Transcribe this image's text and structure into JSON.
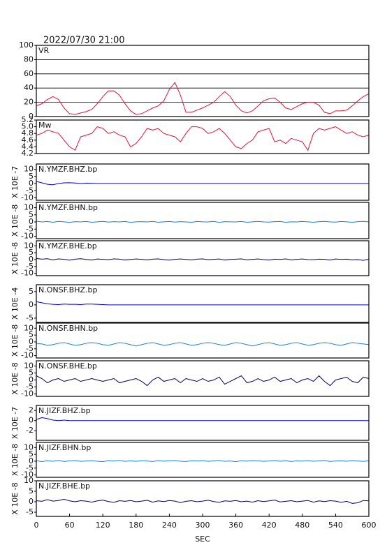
{
  "chart_data": {
    "type": "line",
    "title": "2022/07/30 21:00",
    "xlabel": "SEC",
    "x": [
      0,
      10,
      20,
      30,
      40,
      50,
      60,
      70,
      80,
      90,
      100,
      110,
      120,
      130,
      140,
      150,
      160,
      170,
      180,
      190,
      200,
      210,
      220,
      230,
      240,
      250,
      260,
      270,
      280,
      290,
      300,
      310,
      320,
      330,
      340,
      350,
      360,
      370,
      380,
      390,
      400,
      410,
      420,
      430,
      440,
      450,
      460,
      470,
      480,
      490,
      500,
      510,
      520,
      530,
      540,
      550,
      560,
      570,
      580,
      590,
      600
    ],
    "xlim": [
      0,
      600
    ],
    "xticks": [
      0,
      60,
      120,
      180,
      240,
      300,
      360,
      420,
      480,
      540,
      600
    ],
    "panels": [
      {
        "name": "VR",
        "color": "#dc143c",
        "grid": true,
        "ylim": [
          0,
          100
        ],
        "yticks": [
          0,
          20,
          40,
          60,
          80,
          100
        ],
        "values": [
          15,
          18,
          24,
          28,
          24,
          12,
          4,
          3,
          5,
          7,
          10,
          18,
          28,
          36,
          36,
          30,
          18,
          8,
          3,
          4,
          8,
          12,
          15,
          22,
          38,
          48,
          30,
          6,
          6,
          9,
          12,
          16,
          20,
          28,
          35,
          28,
          16,
          8,
          5,
          8,
          15,
          22,
          25,
          26,
          20,
          12,
          10,
          14,
          18,
          20,
          20,
          16,
          6,
          4,
          8,
          8,
          9,
          15,
          22,
          28,
          32
        ]
      },
      {
        "name": "Mw",
        "color": "#dc143c",
        "grid": false,
        "ylim": [
          4.2,
          5.2
        ],
        "yticks": [
          4.2,
          4.4,
          4.6,
          4.8,
          {
            "value": 5,
            "label": "5.0"
          },
          5.2
        ],
        "values": [
          4.75,
          4.8,
          4.9,
          4.85,
          4.8,
          4.6,
          4.4,
          4.3,
          4.7,
          4.75,
          4.8,
          5.0,
          4.95,
          4.8,
          4.85,
          4.75,
          4.7,
          4.4,
          4.5,
          4.7,
          4.95,
          4.9,
          4.95,
          4.8,
          4.75,
          4.7,
          4.55,
          4.8,
          5.0,
          5.0,
          4.95,
          4.8,
          4.85,
          4.95,
          4.8,
          4.6,
          4.4,
          4.35,
          4.5,
          4.6,
          4.85,
          4.9,
          4.95,
          4.55,
          4.6,
          4.5,
          4.65,
          4.6,
          4.55,
          4.3,
          4.8,
          4.95,
          4.9,
          4.95,
          5.0,
          4.9,
          4.8,
          4.85,
          4.75,
          4.7,
          4.75
        ]
      },
      {
        "name": "N.YMZF.BHZ.bp",
        "ylabel": "X 10E -7",
        "color": "#0000cd",
        "grid": false,
        "ylim": [
          -11.7,
          13.7
        ],
        "yticks": [
          -10,
          -5,
          0,
          5,
          10
        ],
        "values": [
          1.5,
          0.5,
          -0.5,
          -0.8,
          0,
          0.5,
          0.6,
          0.4,
          0,
          0.3,
          0.2,
          0,
          0,
          0,
          0,
          0,
          0,
          0,
          0,
          0,
          0,
          0,
          0,
          0,
          0,
          0,
          0,
          0,
          0,
          0,
          0,
          0,
          0,
          0,
          0,
          0,
          0,
          0,
          0,
          0,
          0,
          0,
          0,
          0,
          0,
          0,
          0,
          0,
          0,
          0,
          0,
          0,
          0,
          0,
          0,
          0,
          0,
          0,
          0,
          0,
          0
        ]
      },
      {
        "name": "N.YMZF.BHN.bp",
        "ylabel": "X 10E -8",
        "color": "#1e7fd0",
        "grid": false,
        "ylim": [
          -11.7,
          13.7
        ],
        "yticks": [
          -10,
          -5,
          0,
          5,
          10
        ],
        "values": [
          0.5,
          0,
          0.3,
          -0.2,
          0.4,
          0.1,
          -0.3,
          0.2,
          0,
          0.3,
          -0.2,
          0.1,
          0.4,
          -0.1,
          0.2,
          0,
          0.3,
          -0.3,
          0.1,
          0.2,
          0,
          0.4,
          -0.2,
          0.1,
          0.3,
          -0.1,
          0.2,
          0,
          -0.2,
          0.3,
          0.1,
          0,
          0.4,
          -0.3,
          0.2,
          0.1,
          0,
          0.3,
          -0.2,
          0.1,
          0.4,
          0,
          -0.1,
          0.2,
          0.3,
          -0.2,
          0.1,
          0,
          0.3,
          0.1,
          -0.2,
          0.2,
          0.4,
          0,
          -0.1,
          0.3,
          0.1,
          -0.2,
          0.2,
          0.4,
          0.1
        ]
      },
      {
        "name": "N.YMZF.BHE.bp",
        "ylabel": "X 10E -8",
        "color": "#000060",
        "grid": false,
        "ylim": [
          -11.7,
          13.7
        ],
        "yticks": [
          -10,
          -5,
          0,
          5,
          10
        ],
        "values": [
          0.8,
          0.3,
          0.6,
          -0.2,
          0.5,
          0.2,
          -0.4,
          0.3,
          0.6,
          0.1,
          -0.3,
          0.4,
          0.2,
          -0.1,
          0.5,
          0.3,
          -0.3,
          0.1,
          0.4,
          0.2,
          -0.2,
          0.3,
          0.5,
          0,
          -0.4,
          0.2,
          0.4,
          0.1,
          -0.2,
          0.3,
          0.5,
          -0.1,
          0.2,
          0.4,
          -0.3,
          0.1,
          0.3,
          0.5,
          -0.2,
          0.2,
          0.4,
          0,
          -0.3,
          0.3,
          0.1,
          0.5,
          -0.2,
          0.2,
          0.4,
          0,
          -0.1,
          0.3,
          0.2,
          -0.3,
          0.4,
          0.1,
          0.3,
          -0.2,
          0,
          -0.6,
          0.4
        ]
      },
      {
        "name": "N.ONSF.BHZ.bp",
        "ylabel": "X 10E -4",
        "color": "#0000cd",
        "grid": false,
        "ylim": [
          -6.6,
          7.6
        ],
        "yticks": [
          -5,
          0,
          5
        ],
        "values": [
          1.2,
          0.8,
          0.4,
          0.2,
          0.1,
          0.3,
          0.2,
          0.2,
          0.1,
          0.3,
          0.3,
          0.2,
          0.1,
          0,
          0,
          0,
          0,
          0,
          0,
          0,
          0,
          0,
          0,
          0,
          0,
          0,
          0,
          0,
          0,
          0,
          0,
          0,
          0,
          0,
          0,
          0,
          0,
          0,
          0,
          0,
          0,
          0,
          0,
          0,
          0,
          0,
          0,
          0,
          0,
          0,
          0,
          0,
          0,
          0,
          0,
          0,
          0,
          0,
          0,
          0,
          0
        ]
      },
      {
        "name": "N.ONSF.BHN.bp",
        "ylabel": "X 10E -8",
        "color": "#1e7fd0",
        "grid": false,
        "ylim": [
          -11.7,
          13.7
        ],
        "yticks": [
          -10,
          -5,
          0,
          5,
          10
        ],
        "values": [
          -1,
          -1.5,
          -2.5,
          -2,
          -1,
          -0.5,
          -1.5,
          -2.5,
          -2,
          -1,
          -0.5,
          -1,
          -2,
          -2.5,
          -1.5,
          -0.5,
          -1,
          -2,
          -3,
          -2,
          -1,
          -0.5,
          -1.5,
          -2.5,
          -2,
          -1,
          -0.5,
          -1.5,
          -2.5,
          -2,
          -1,
          -0.5,
          -1,
          -2,
          -2.5,
          -1.5,
          -0.5,
          -1,
          -2,
          -3,
          -2,
          -1,
          -0.5,
          -1.5,
          -2.5,
          -2,
          -1,
          -0.5,
          -1.5,
          -2.5,
          -2,
          -1,
          -0.5,
          -1,
          -2,
          -2.5,
          -1.5,
          -0.5,
          -1,
          -1.5,
          -2
        ]
      },
      {
        "name": "N.ONSF.BHE.bp",
        "ylabel": "X 10E -8",
        "color": "#000060",
        "grid": false,
        "ylim": [
          -11.7,
          13.7
        ],
        "yticks": [
          -10,
          -5,
          0,
          5,
          10
        ],
        "values": [
          3,
          1,
          -2,
          0,
          1,
          -1,
          0,
          1,
          -1,
          0,
          1,
          0,
          -1,
          0,
          1,
          -2,
          -1,
          0,
          1,
          -1,
          -4,
          0,
          2,
          -1,
          0,
          1,
          -2,
          1,
          0,
          -1,
          1,
          -1,
          0,
          2,
          -3,
          -1,
          1,
          3,
          -2,
          -1,
          1,
          -1,
          0,
          2,
          -1,
          0,
          1,
          -2,
          0,
          1,
          -1,
          3,
          -1,
          -4,
          0,
          1,
          2,
          -1,
          -2,
          2,
          1
        ]
      },
      {
        "name": "N.JIZF.BHZ.bp",
        "ylabel": "X 10E -7",
        "color": "#0000cd",
        "grid": false,
        "ylim": [
          -3.9,
          3
        ],
        "yticks": [
          -2,
          0,
          2
        ],
        "values": [
          0.2,
          0.6,
          0.4,
          0.1,
          0,
          0.1,
          0,
          0,
          0,
          0,
          0,
          0,
          0,
          0,
          0,
          0,
          0,
          0,
          0,
          0,
          0,
          0,
          0,
          0,
          0,
          0,
          0,
          0,
          0,
          0,
          0,
          0,
          0,
          0,
          0,
          0,
          0,
          0,
          0,
          0,
          0,
          0,
          0,
          0,
          0,
          0,
          0,
          0,
          0,
          0,
          0,
          0,
          0,
          0,
          0,
          0,
          0,
          0,
          0,
          0,
          0
        ]
      },
      {
        "name": "N.JIZF.BHN.bp",
        "ylabel": "X 10E -8",
        "color": "#1e7fd0",
        "grid": false,
        "ylim": [
          -11.7,
          13.7
        ],
        "yticks": [
          -10,
          -5,
          0,
          5,
          10
        ],
        "values": [
          0.5,
          -0.3,
          0.4,
          0,
          0.6,
          -0.2,
          0.3,
          0.5,
          -0.1,
          0.2,
          0.4,
          0,
          -0.3,
          0.5,
          0.2,
          0.6,
          -0.1,
          0.3,
          0,
          0.4,
          0.2,
          -0.2,
          0.5,
          0.1,
          0.3,
          0.6,
          0,
          -0.2,
          0.4,
          0.2,
          0.5,
          -0.1,
          0.3,
          0.6,
          0,
          0.2,
          -0.3,
          0.4,
          0.1,
          0.5,
          0.3,
          -0.1,
          0.2,
          0.6,
          0,
          0.4,
          -0.2,
          0.3,
          0.1,
          0.5,
          0,
          0.3,
          0.6,
          -0.2,
          0.2,
          0.4,
          0,
          0.5,
          0.2,
          -0.1,
          0.3
        ]
      },
      {
        "name": "N.JIZF.BHE.bp",
        "ylabel": "X 10E -8",
        "color": "#000060",
        "grid": false,
        "ylim": [
          -7,
          10
        ],
        "yticks": [
          -5,
          0,
          5,
          10
        ],
        "values": [
          0.5,
          0.2,
          1,
          0.3,
          0.6,
          1.2,
          0.4,
          0,
          0.5,
          0.3,
          -0.2,
          0.4,
          0.8,
          0.1,
          -0.3,
          0.5,
          0.2,
          0.6,
          0,
          0.3,
          0.7,
          -0.2,
          0.4,
          0.1,
          0.6,
          0.3,
          -0.4,
          0.2,
          0.5,
          0,
          0.3,
          0.7,
          0.1,
          -0.3,
          0.4,
          0.2,
          0.6,
          0,
          0.3,
          -0.2,
          0.5,
          0.1,
          0.4,
          0.8,
          -0.1,
          0.2,
          0.5,
          0,
          0.3,
          0.6,
          -0.2,
          0.4,
          0.1,
          0.5,
          0.3,
          -0.3,
          0.2,
          -0.8,
          -0.5,
          0.6,
          0.4
        ]
      }
    ]
  }
}
